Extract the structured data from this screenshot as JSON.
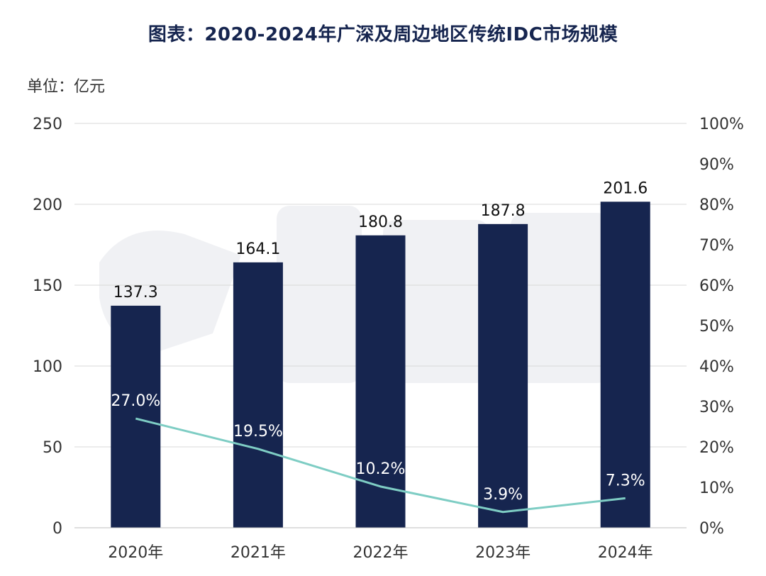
{
  "title": "图表：2020-2024年广深及周边地区传统IDC市场规模",
  "unit_label": "单位：亿元",
  "colors": {
    "bar": "#16254f",
    "line": "#7ecdc4",
    "grid": "#d9d9d9",
    "axis_text": "#333333",
    "data_label_dark": "#111111",
    "data_label_light": "#ffffff"
  },
  "chart_data": {
    "type": "bar",
    "categories": [
      "2020年",
      "2021年",
      "2022年",
      "2023年",
      "2024年"
    ],
    "series": [
      {
        "type": "bar",
        "axis": "left",
        "values": [
          137.3,
          164.1,
          180.8,
          187.8,
          201.6
        ],
        "labels": [
          "137.3",
          "164.1",
          "180.8",
          "187.8",
          "201.6"
        ]
      },
      {
        "type": "line",
        "axis": "right",
        "values": [
          27.0,
          19.5,
          10.2,
          3.9,
          7.3
        ],
        "labels": [
          "27.0%",
          "19.5%",
          "10.2%",
          "3.9%",
          "7.3%"
        ]
      }
    ],
    "y_left": {
      "min": 0,
      "max": 250,
      "ticks": [
        0,
        50,
        100,
        150,
        200,
        250
      ],
      "tick_labels": [
        "0",
        "50",
        "100",
        "150",
        "200",
        "250"
      ]
    },
    "y_right": {
      "min": 0,
      "max": 100,
      "ticks": [
        0,
        10,
        20,
        30,
        40,
        50,
        60,
        70,
        80,
        90,
        100
      ],
      "tick_labels": [
        "0%",
        "10%",
        "20%",
        "30%",
        "40%",
        "50%",
        "60%",
        "70%",
        "80%",
        "90%",
        "100%"
      ]
    },
    "grid": true,
    "legend": "none"
  }
}
